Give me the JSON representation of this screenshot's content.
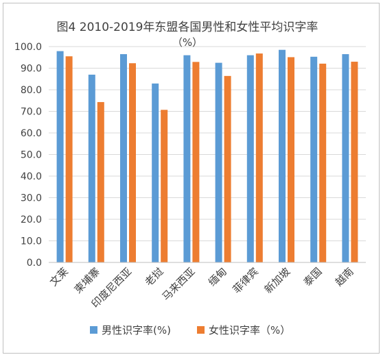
{
  "chart_data": {
    "type": "bar",
    "title": "图4 2010-2019年东盟各国男性和女性平均识字率",
    "subtitle": "（%）",
    "xlabel": "",
    "ylabel": "",
    "ylim": [
      0,
      100
    ],
    "yticks": [
      "0.0",
      "10.0",
      "20.0",
      "30.0",
      "40.0",
      "50.0",
      "60.0",
      "70.0",
      "80.0",
      "90.0",
      "100.0"
    ],
    "grid": true,
    "legend_position": "bottom",
    "categories": [
      "文莱",
      "柬埔寨",
      "印度尼西亚",
      "老挝",
      "马来西亚",
      "缅甸",
      "菲律宾",
      "新加坡",
      "泰国",
      "越南"
    ],
    "series": [
      {
        "name": "男性识字率(%)",
        "color": "#5b9bd5",
        "values": [
          97.9,
          87.0,
          96.5,
          82.9,
          96.0,
          92.5,
          96.0,
          98.5,
          95.3,
          96.5
        ]
      },
      {
        "name": "女性识字率（%）",
        "color": "#ed7d31",
        "values": [
          95.5,
          74.3,
          92.3,
          70.7,
          92.9,
          86.4,
          96.8,
          95.1,
          92.1,
          93.0
        ]
      }
    ]
  }
}
